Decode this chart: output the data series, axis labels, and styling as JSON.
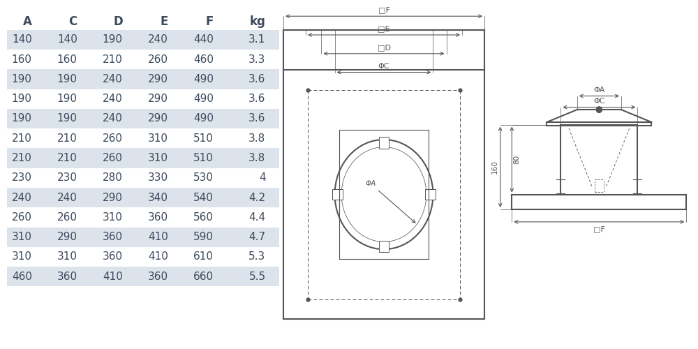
{
  "headers": [
    "A",
    "C",
    "D",
    "E",
    "F",
    "kg"
  ],
  "rows": [
    [
      140,
      140,
      190,
      240,
      440,
      "3.1"
    ],
    [
      160,
      160,
      210,
      260,
      460,
      "3.3"
    ],
    [
      190,
      190,
      240,
      290,
      490,
      "3.6"
    ],
    [
      190,
      190,
      240,
      290,
      490,
      "3.6"
    ],
    [
      190,
      190,
      240,
      290,
      490,
      "3.6"
    ],
    [
      210,
      210,
      260,
      310,
      510,
      "3.8"
    ],
    [
      210,
      210,
      260,
      310,
      510,
      "3.8"
    ],
    [
      230,
      230,
      280,
      330,
      530,
      "4"
    ],
    [
      240,
      240,
      290,
      340,
      540,
      "4.2"
    ],
    [
      260,
      260,
      310,
      360,
      560,
      "4.4"
    ],
    [
      310,
      290,
      360,
      410,
      590,
      "4.7"
    ],
    [
      310,
      310,
      360,
      410,
      610,
      "5.3"
    ],
    [
      460,
      360,
      410,
      360,
      660,
      "5.5"
    ]
  ],
  "row_colors": [
    "#dde3ea",
    "#ffffff",
    "#dde3ea",
    "#ffffff",
    "#dde3ea",
    "#ffffff",
    "#dde3ea",
    "#ffffff",
    "#dde3ea",
    "#ffffff",
    "#dde3ea",
    "#ffffff",
    "#dde3ea"
  ],
  "text_color": "#3d4a5c",
  "bg_color": "#ffffff",
  "font_size": 11,
  "header_font_size": 12
}
